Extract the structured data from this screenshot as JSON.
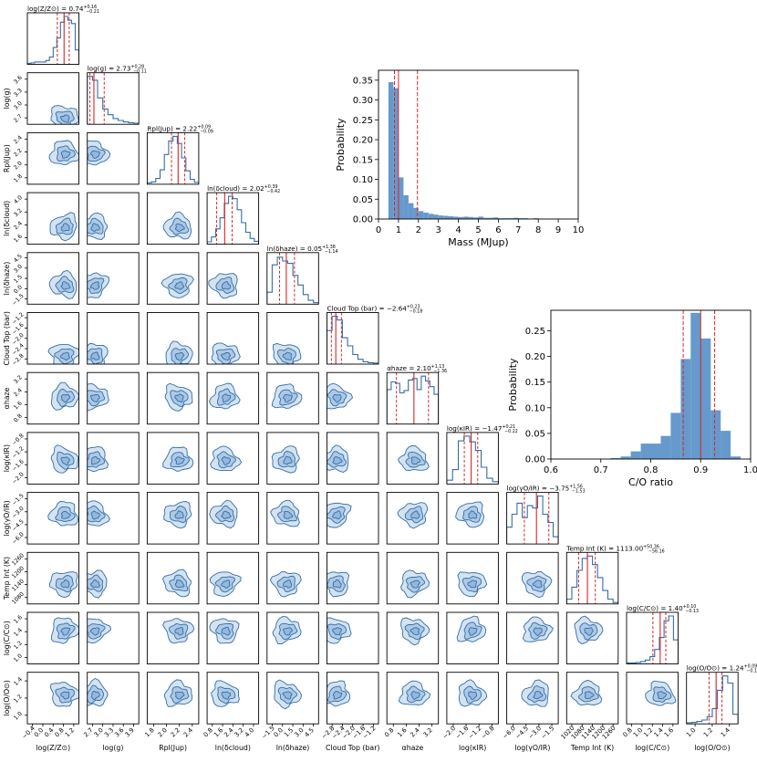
{
  "chart_data": [
    {
      "type": "corner",
      "parameters": [
        {
          "axis_label": "log(Z/Z⊙)",
          "title": "log(Z/Z⊙) = 0.74",
          "title_err_up": "+0.16",
          "title_err_dn": "−0.21",
          "range": [
            -0.4,
            1.2
          ],
          "ticks": [
            "−0.4",
            "0.0",
            "0.4",
            "0.8",
            "1.2"
          ],
          "ticks_left": [],
          "median": 0.74,
          "err_up": 0.16,
          "err_dn": 0.21,
          "hist": [
            0.02,
            0.03,
            0.05,
            0.05,
            0.05,
            0.08,
            0.15,
            0.35,
            0.55,
            0.88,
            1.0,
            0.92,
            0.85,
            0.3
          ]
        },
        {
          "axis_label": "log(g)",
          "title": "log(g) = 2.73",
          "title_err_up": "+0.28",
          "title_err_dn": "−0.11",
          "range": [
            2.55,
            3.95
          ],
          "ticks": [
            "2.7",
            "3.0",
            "3.3",
            "3.6",
            "3.9"
          ],
          "ticks_left": [
            "2.7",
            "3.0",
            "3.3",
            "3.6"
          ],
          "median": 2.73,
          "err_up": 0.28,
          "err_dn": 0.11,
          "hist": [
            1.0,
            0.92,
            0.55,
            0.32,
            0.2,
            0.12,
            0.08,
            0.05,
            0.03,
            0.02
          ]
        },
        {
          "axis_label": "Rpl(Jup)",
          "title": "Rpl(Jup) = 2.22",
          "title_err_up": "+0.09",
          "title_err_dn": "−0.09",
          "range": [
            1.8,
            2.5
          ],
          "ticks": [
            "1.8",
            "2.0",
            "2.2",
            "2.4"
          ],
          "ticks_left": [
            "1.8",
            "2.0",
            "2.2",
            "2.4"
          ],
          "median": 2.22,
          "err_up": 0.09,
          "err_dn": 0.09,
          "hist": [
            0.03,
            0.05,
            0.12,
            0.3,
            0.62,
            0.9,
            1.0,
            0.85,
            0.55,
            0.28,
            0.1,
            0.04
          ]
        },
        {
          "axis_label": "ln(δcloud)",
          "title": "ln(δcloud) = 2.02",
          "title_err_up": "+0.39",
          "title_err_dn": "−0.42",
          "range": [
            1.1,
            3.8
          ],
          "ticks": [
            "0.8",
            "1.6",
            "2.4",
            "3.2",
            "4.0"
          ],
          "ticks_left": [
            "1.6",
            "2.4",
            "3.2",
            "4.0"
          ],
          "median": 2.02,
          "err_up": 0.39,
          "err_dn": 0.42,
          "hist": [
            0.05,
            0.15,
            0.32,
            0.55,
            0.85,
            1.0,
            0.95,
            0.72,
            0.45,
            0.25,
            0.12,
            0.06
          ]
        },
        {
          "axis_label": "ln(δhaze)",
          "title": "ln(δhaze) = 0.05",
          "title_err_up": "+1.38",
          "title_err_dn": "−1.14",
          "range": [
            -3.2,
            5.5
          ],
          "ticks": [
            "−1.5",
            "0.0",
            "1.5",
            "3.0",
            "4.5"
          ],
          "ticks_left": [
            "−1.5",
            "0.0",
            "1.5",
            "3.0",
            "4.5"
          ],
          "median": 0.05,
          "err_up": 1.38,
          "err_dn": 1.14,
          "hist": [
            0.25,
            0.82,
            0.98,
            0.9,
            0.85,
            0.6,
            0.4,
            0.2,
            0.08,
            0.03
          ]
        },
        {
          "axis_label": "Cloud Top (bar)",
          "title": "Cloud Top (bar) = −2.64",
          "title_err_up": "+0.23",
          "title_err_dn": "−0.18",
          "range": [
            -3.0,
            -0.9
          ],
          "ticks": [
            "−2.8",
            "−2.4",
            "−2.0",
            "−1.6",
            "−1.2"
          ],
          "ticks_left": [
            "−2.8",
            "−2.4",
            "−2.0",
            "−1.6",
            "−1.2"
          ],
          "median": -2.64,
          "err_up": 0.23,
          "err_dn": 0.18,
          "hist": [
            0.7,
            1.0,
            0.92,
            0.55,
            0.38,
            0.2,
            0.1,
            0.05,
            0.03,
            0.02
          ]
        },
        {
          "axis_label": "αhaze",
          "title": "αhaze = 2.10",
          "title_err_up": "+1.13",
          "title_err_dn": "−1.36",
          "range": [
            0.0,
            4.0
          ],
          "ticks": [
            "0.8",
            "1.6",
            "2.4",
            "3.2"
          ],
          "ticks_left": [
            "0.8",
            "1.6",
            "2.4",
            "3.2"
          ],
          "median": 2.1,
          "err_up": 1.13,
          "err_dn": 1.36,
          "hist": [
            0.72,
            0.88,
            0.85,
            0.65,
            0.7,
            0.92,
            0.95,
            0.72,
            1.0,
            0.9,
            0.78,
            0.62
          ]
        },
        {
          "axis_label": "log(κIR)",
          "title": "log(κIR) = −1.47",
          "title_err_up": "+0.21",
          "title_err_dn": "−0.22",
          "range": [
            -2.25,
            -0.6
          ],
          "ticks": [
            "−2.0",
            "−1.6",
            "−1.2",
            "−0.8"
          ],
          "ticks_left": [
            "−2.0",
            "−1.6",
            "−1.2",
            "−0.8"
          ],
          "median": -1.47,
          "err_up": 0.21,
          "err_dn": 0.22,
          "hist": [
            0.08,
            0.3,
            0.9,
            1.0,
            0.88,
            0.7,
            0.35,
            0.12,
            0.05
          ]
        },
        {
          "axis_label": "log(γO/IR)",
          "title": "log(γO/IR) = −3.75",
          "title_err_up": "+1.56",
          "title_err_dn": "−1.53",
          "range": [
            -7.5,
            -1.0
          ],
          "ticks": [
            "−6.0",
            "−4.5",
            "−3.0",
            "−1.5"
          ],
          "ticks_left": [
            "−6.0",
            "−4.5",
            "−3.0",
            "−1.5"
          ],
          "median": -3.75,
          "err_up": 1.56,
          "err_dn": 1.53,
          "hist": [
            0.35,
            0.62,
            0.85,
            0.55,
            0.8,
            0.75,
            1.0,
            0.62,
            0.45,
            0.15
          ]
        },
        {
          "axis_label": "Temp Int (K)",
          "title": "Temp Int (K) = 1113.00",
          "title_err_up": "+50.36",
          "title_err_dn": "−56.16",
          "range": [
            980,
            1310
          ],
          "ticks": [
            "1020",
            "1080",
            "1140",
            "1200",
            "1260"
          ],
          "ticks_left": [
            "1080",
            "1140",
            "1200",
            "1260"
          ],
          "median": 1113,
          "err_up": 50.36,
          "err_dn": 56.16,
          "hist": [
            0.1,
            0.35,
            0.7,
            0.95,
            1.0,
            0.82,
            0.55,
            0.28,
            0.1,
            0.03
          ]
        },
        {
          "axis_label": "log(C/C⊙)",
          "title": "log(C/C⊙) = 1.40",
          "title_err_up": "+0.10",
          "title_err_dn": "−0.13",
          "range": [
            0.8,
            1.72
          ],
          "ticks": [
            "0.8",
            "1.0",
            "1.2",
            "1.4",
            "1.6"
          ],
          "ticks_left": [
            "1.0",
            "1.2",
            "1.4",
            "1.6"
          ],
          "median": 1.4,
          "err_up": 0.1,
          "err_dn": 0.13,
          "hist": [
            0.02,
            0.02,
            0.03,
            0.05,
            0.08,
            0.15,
            0.3,
            0.55,
            0.9,
            1.0,
            0.5
          ]
        },
        {
          "axis_label": "log(O/O⊙)",
          "title": "log(O/O⊙) = 1.24",
          "title_err_up": "+0.09",
          "title_err_dn": "−0.11",
          "range": [
            0.78,
            1.58
          ],
          "ticks": [
            "1.0",
            "1.2",
            "1.4"
          ],
          "ticks_left": [
            "1.0",
            "1.2",
            "1.4"
          ],
          "median": 1.24,
          "err_up": 0.09,
          "err_dn": 0.11,
          "hist": [
            0.02,
            0.03,
            0.05,
            0.08,
            0.15,
            0.32,
            0.7,
            1.0,
            0.85,
            0.2
          ]
        }
      ]
    },
    {
      "type": "bar",
      "xlabel": "Mass (MJup)",
      "ylabel": "Probability",
      "xlim": [
        0,
        10
      ],
      "ylim": [
        0,
        0.375
      ],
      "xticks": [
        "0",
        "1",
        "2",
        "3",
        "4",
        "5",
        "6",
        "7",
        "8",
        "9",
        "10"
      ],
      "yticks": [
        "0.00",
        "0.05",
        "0.10",
        "0.15",
        "0.20",
        "0.25",
        "0.30",
        "0.35"
      ],
      "bin_edges": [
        0.5,
        0.75,
        1.0,
        1.25,
        1.5,
        1.75,
        2.0,
        2.25,
        2.5,
        2.75,
        3.0,
        3.25,
        3.5,
        3.75,
        4.0,
        4.25,
        4.5,
        4.75,
        5.0,
        5.25,
        5.5,
        5.75,
        6.0,
        6.25,
        6.5,
        6.75,
        7.0,
        7.25,
        7.5,
        7.75,
        8.0,
        8.25,
        8.5,
        8.75,
        9.0,
        9.25,
        9.5,
        9.75
      ],
      "values": [
        0.345,
        0.33,
        0.105,
        0.06,
        0.04,
        0.028,
        0.02,
        0.016,
        0.013,
        0.011,
        0.009,
        0.008,
        0.007,
        0.006,
        0.005,
        0.006,
        0.005,
        0.004,
        0.006,
        0.003,
        0.003,
        0.004,
        0.002,
        0.002,
        0.002,
        0.003,
        0.002,
        0.002,
        0.001,
        0.002,
        0.001,
        0.001,
        0.001,
        0.001,
        0.001,
        0.001,
        0.001
      ],
      "vlines": [
        0.8,
        1.0,
        1.95
      ]
    },
    {
      "type": "bar",
      "xlabel": "C/O ratio",
      "ylabel": "Probability",
      "xlim": [
        0.6,
        1.0
      ],
      "ylim": [
        0,
        0.29
      ],
      "xticks": [
        "0.6",
        "0.7",
        "0.8",
        "0.9",
        "1.0"
      ],
      "yticks": [
        "0.00",
        "0.05",
        "0.10",
        "0.15",
        "0.20",
        "0.25"
      ],
      "bin_edges": [
        0.72,
        0.74,
        0.76,
        0.78,
        0.8,
        0.82,
        0.84,
        0.86,
        0.88,
        0.9,
        0.92,
        0.94,
        0.96,
        0.98
      ],
      "values": [
        0.002,
        0.005,
        0.015,
        0.03,
        0.03,
        0.045,
        0.09,
        0.195,
        0.285,
        0.235,
        0.095,
        0.055,
        0.005
      ],
      "vlines": [
        0.865,
        0.9,
        0.928
      ]
    }
  ],
  "colors": {
    "fill": "#6699cc",
    "line": "#336ea6",
    "median": "#d62728"
  }
}
